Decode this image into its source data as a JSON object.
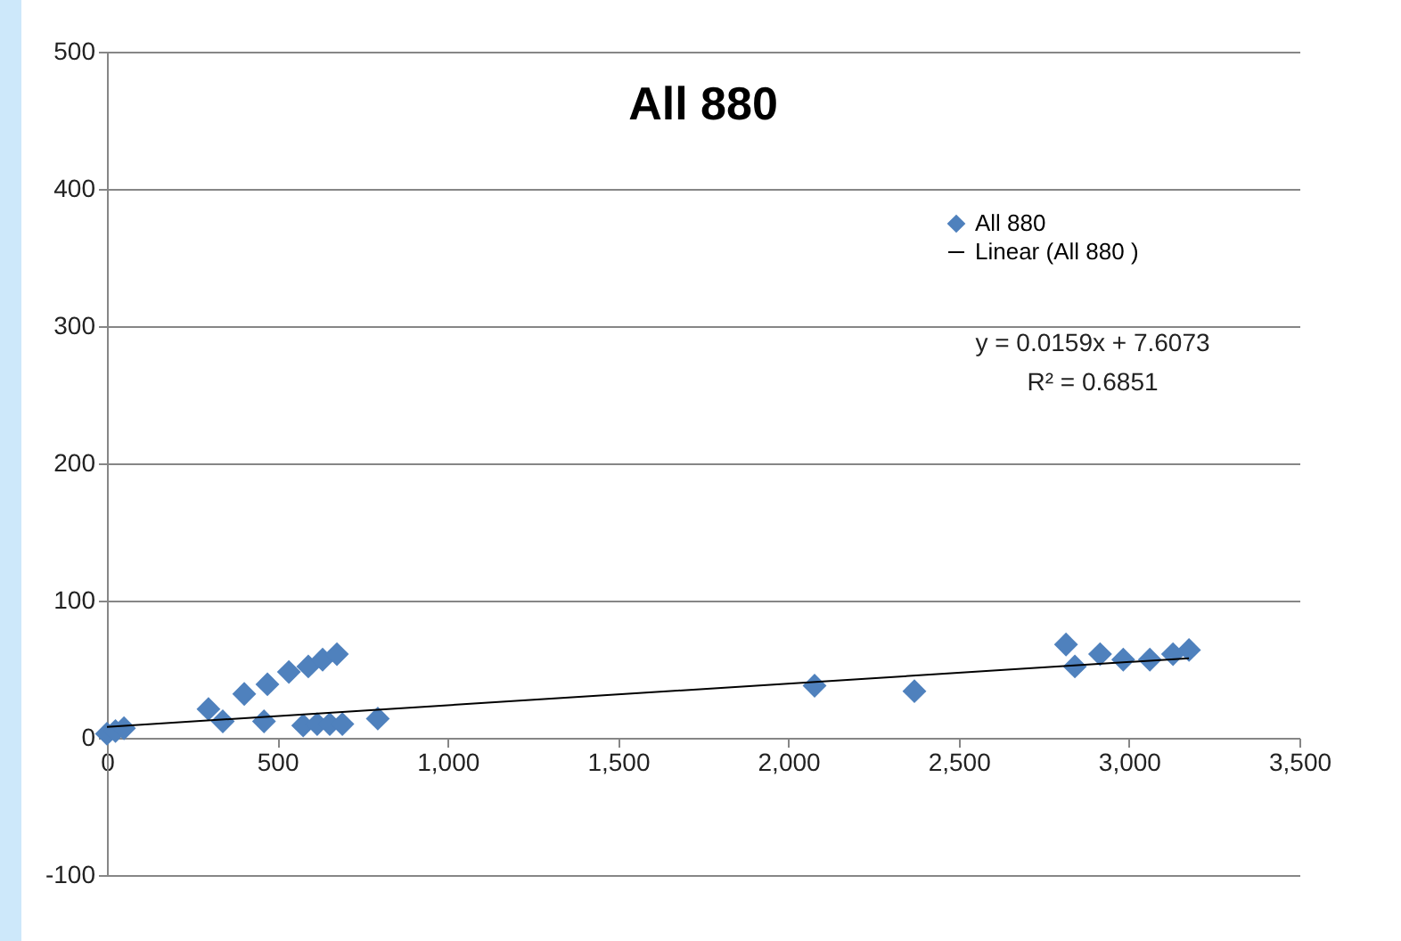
{
  "chart_data": {
    "type": "scatter",
    "title": "All 880",
    "grid": "y",
    "legend": "top right",
    "xlim": [
      0,
      3500
    ],
    "xticks": [
      0,
      500,
      {
        "value": 1000,
        "label": "1,000"
      },
      {
        "value": 1500,
        "label": "1,500"
      },
      {
        "value": 2000,
        "label": "2,000"
      },
      {
        "value": 2500,
        "label": "2,500"
      },
      {
        "value": 3000,
        "label": "3,000"
      },
      {
        "value": 3500,
        "label": "3,500"
      }
    ],
    "ylim": [
      -100,
      500
    ],
    "yticks": [
      -100,
      0,
      100,
      200,
      300,
      400,
      500
    ],
    "annotations": [
      "y = 0.0159x + 7.6073",
      "R² = 0.6851"
    ],
    "series": [
      {
        "name": "All 880",
        "color": "#4f81bd",
        "marker": "diamond",
        "x": [
          0,
          25,
          50,
          298,
          340,
          403,
          461,
          471,
          534,
          576,
          591,
          617,
          633,
          654,
          675,
          691,
          795,
          2077,
          2370,
          2815,
          2841,
          2915,
          2983,
          3061,
          3129,
          3176
        ],
        "values": [
          3,
          5,
          7,
          21,
          12,
          32,
          12,
          39,
          48,
          9,
          52,
          10,
          57,
          10,
          61,
          10,
          14,
          38,
          34,
          68,
          52,
          61,
          57,
          57,
          61,
          64
        ]
      },
      {
        "name": "Linear (All 880 )",
        "type": "line",
        "color": "#000000",
        "x": [
          0,
          3176
        ],
        "values": [
          8,
          58
        ]
      }
    ]
  }
}
